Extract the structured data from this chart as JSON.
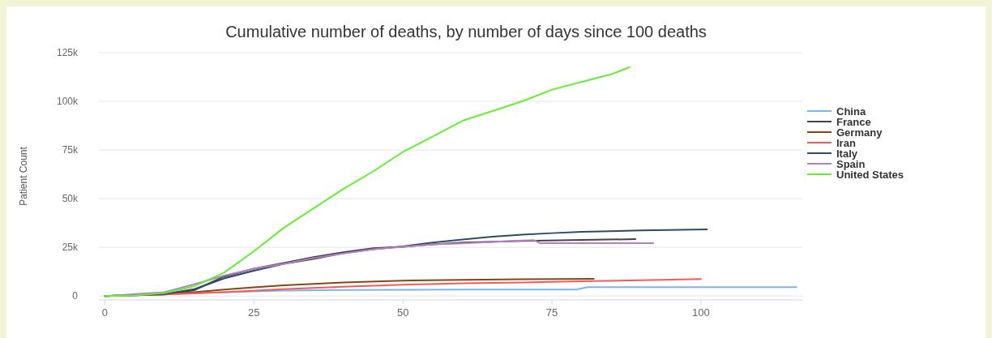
{
  "chart_data": {
    "type": "line",
    "title": "Cumulative number of deaths, by number of days since 100 deaths",
    "ylabel": "Patient Count",
    "xlim": [
      -1,
      117
    ],
    "xticks": [
      0,
      25,
      50,
      75,
      100
    ],
    "ylim": [
      -2,
      125
    ],
    "yticks": [
      {
        "value": 0,
        "label": "0"
      },
      {
        "value": 25,
        "label": "25k"
      },
      {
        "value": 50,
        "label": "50k"
      },
      {
        "value": 75,
        "label": "75k"
      },
      {
        "value": 100,
        "label": "100k"
      },
      {
        "value": 125,
        "label": "125k"
      }
    ],
    "grid": "y",
    "legend": "right",
    "line_style": "solid",
    "series": [
      {
        "name": "China",
        "color": "#7cb5ec",
        "x": [
          0,
          10,
          20,
          30,
          40,
          60,
          79,
          81,
          116
        ],
        "values": [
          0,
          0.8,
          2,
          2.8,
          3.1,
          3.3,
          3.3,
          4.6,
          4.6
        ]
      },
      {
        "name": "France",
        "color": "#434348",
        "x": [
          0,
          10,
          15,
          20,
          25,
          30,
          35,
          40,
          45,
          50,
          55,
          60,
          70,
          80,
          89
        ],
        "values": [
          0,
          0.8,
          3,
          10,
          14,
          17,
          20,
          22.5,
          24.5,
          25.3,
          26.5,
          27.5,
          28.3,
          28.8,
          29.2
        ]
      },
      {
        "name": "Germany",
        "color": "#8b4513",
        "x": [
          0,
          10,
          15,
          20,
          25,
          30,
          40,
          50,
          60,
          70,
          82
        ],
        "values": [
          0,
          1,
          2,
          3.3,
          4.5,
          5.5,
          7,
          7.9,
          8.3,
          8.6,
          8.8
        ]
      },
      {
        "name": "Iran",
        "color": "#f45b5b",
        "x": [
          0,
          10,
          20,
          30,
          40,
          50,
          60,
          70,
          80,
          90,
          100
        ],
        "values": [
          0,
          0.8,
          2,
          3.5,
          4.8,
          5.8,
          6.5,
          7,
          7.6,
          8.1,
          8.7
        ]
      },
      {
        "name": "Italy",
        "color": "#2b4c64",
        "x": [
          0,
          10,
          15,
          20,
          25,
          30,
          35,
          40,
          45,
          50,
          55,
          60,
          65,
          70,
          75,
          80,
          90,
          101
        ],
        "values": [
          0,
          1,
          3.5,
          9,
          13,
          16.5,
          19,
          22,
          24,
          25.5,
          27.5,
          29,
          30.5,
          31.5,
          32.3,
          33,
          33.7,
          34.2
        ]
      },
      {
        "name": "Spain",
        "color": "#b87fc4",
        "x": [
          0,
          10,
          15,
          20,
          25,
          30,
          35,
          40,
          45,
          50,
          55,
          60,
          70,
          72,
          73,
          92
        ],
        "values": [
          0,
          2,
          6,
          10.5,
          14,
          16.5,
          19.5,
          21.8,
          24,
          25.3,
          26.5,
          27,
          28.5,
          28.7,
          27.1,
          27.1
        ]
      },
      {
        "name": "United States",
        "color": "#66ee33",
        "x": [
          0,
          5,
          10,
          15,
          20,
          25,
          30,
          35,
          40,
          45,
          50,
          55,
          60,
          65,
          70,
          75,
          80,
          85,
          88
        ],
        "values": [
          0,
          0.3,
          1.5,
          5,
          12,
          23,
          35,
          45,
          55,
          64,
          74,
          82,
          90,
          95,
          100,
          106,
          110,
          114,
          117.5
        ]
      }
    ]
  }
}
